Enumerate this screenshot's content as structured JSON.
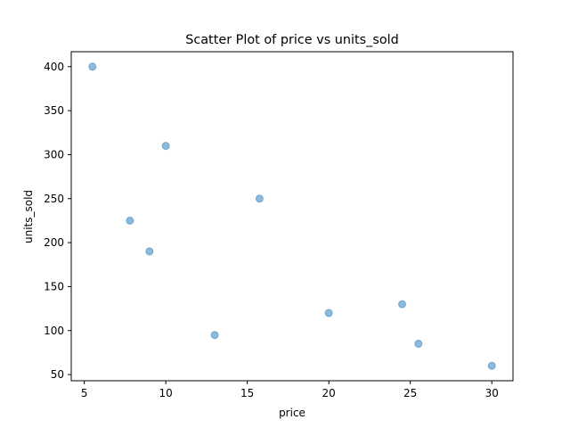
{
  "chart_data": {
    "type": "scatter",
    "title": "Scatter Plot of price vs units_sold",
    "xlabel": "price",
    "ylabel": "units_sold",
    "xlim": [
      4.2,
      31.3
    ],
    "ylim": [
      43,
      417
    ],
    "xticks": [
      5,
      10,
      15,
      20,
      25,
      30
    ],
    "yticks": [
      50,
      100,
      150,
      200,
      250,
      300,
      350,
      400
    ],
    "grid": false,
    "color": "#1f77b4",
    "points": [
      {
        "x": 5.5,
        "y": 400
      },
      {
        "x": 10.0,
        "y": 310
      },
      {
        "x": 15.75,
        "y": 250
      },
      {
        "x": 7.8,
        "y": 225
      },
      {
        "x": 9.0,
        "y": 190
      },
      {
        "x": 24.5,
        "y": 130
      },
      {
        "x": 20.0,
        "y": 120
      },
      {
        "x": 13.0,
        "y": 95
      },
      {
        "x": 25.5,
        "y": 85
      },
      {
        "x": 30.0,
        "y": 60
      }
    ]
  }
}
